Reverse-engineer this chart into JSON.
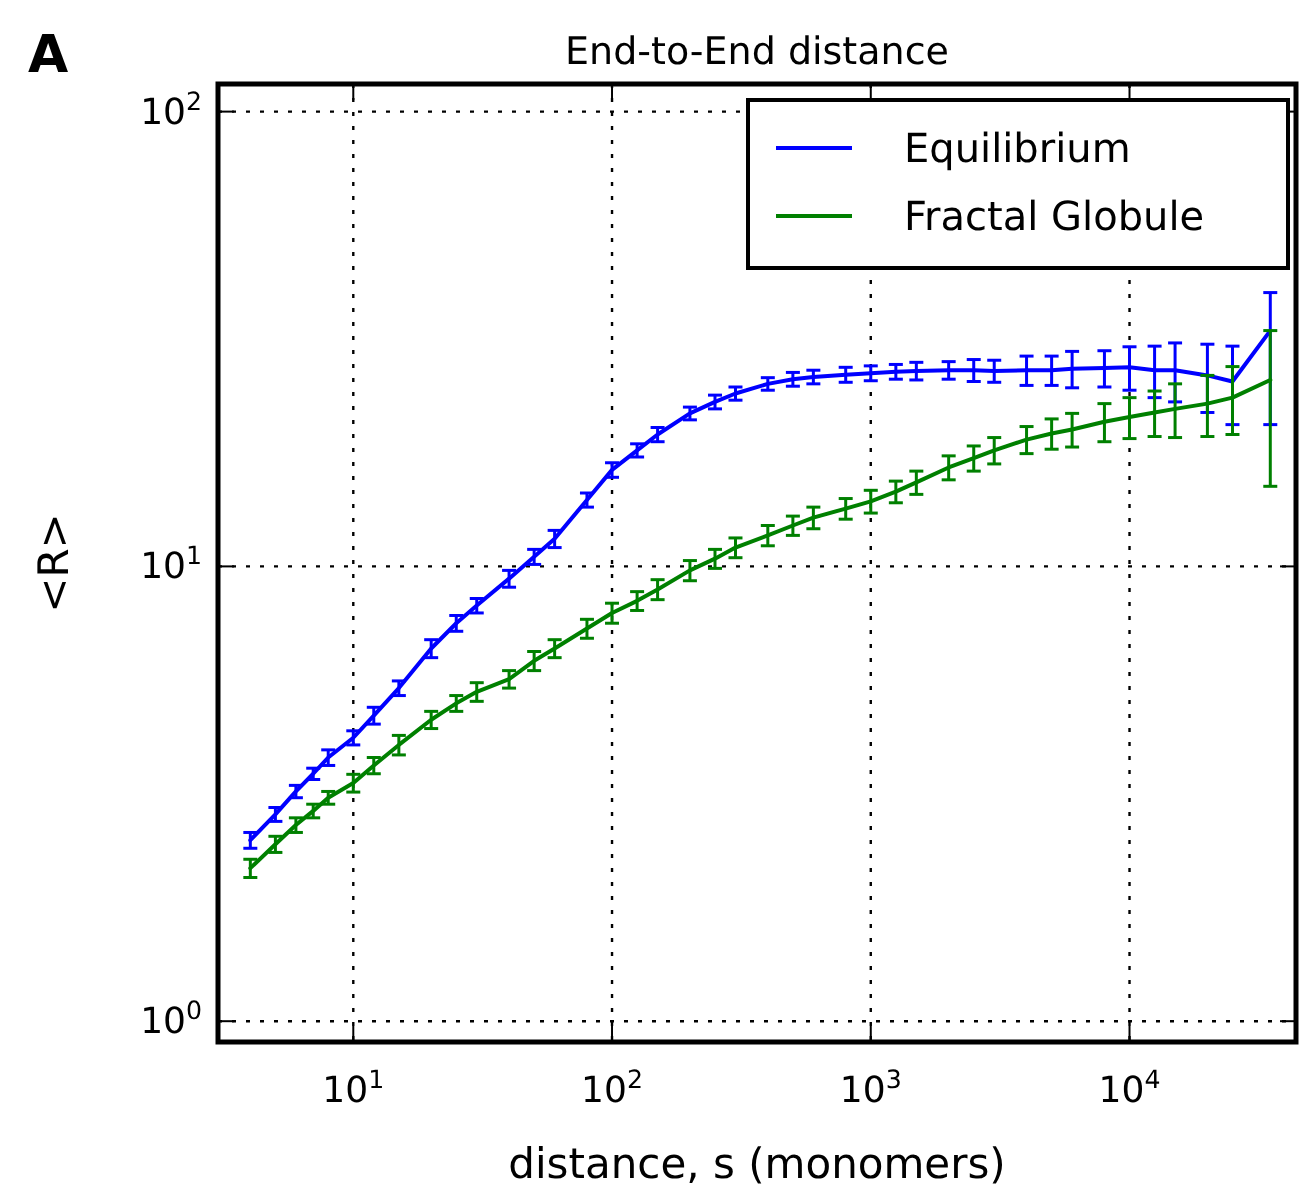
{
  "chart_data": {
    "type": "line",
    "title": "End-to-End distance",
    "xlabel": "distance, s (monomers)",
    "ylabel": "<R>",
    "annotations": [
      "A"
    ],
    "log": "xy",
    "grid": true,
    "legend": "top right",
    "line_style": "solid",
    "xlim": [
      3,
      44000
    ],
    "ylim": [
      0.9,
      115
    ],
    "xticks": [
      {
        "value": 10,
        "label": "10$^{1}$"
      },
      {
        "value": 100,
        "label": "10$^{2}$"
      },
      {
        "value": 1000,
        "label": "10$^{3}$"
      },
      {
        "value": 10000,
        "label": "10$^{4}$"
      }
    ],
    "yticks": [
      {
        "value": 1,
        "label": "10$^{0}$"
      },
      {
        "value": 10,
        "label": "10$^{1}$"
      },
      {
        "value": 100,
        "label": "10$^{2}$"
      }
    ],
    "x": [
      4,
      5,
      6,
      7,
      8,
      10,
      12,
      15,
      20,
      25,
      30,
      40,
      50,
      60,
      80,
      100,
      125,
      150,
      200,
      250,
      300,
      400,
      500,
      600,
      800,
      1000,
      1250,
      1500,
      2000,
      2500,
      3000,
      4000,
      5000,
      6000,
      8000,
      10000,
      12500,
      15000,
      20000,
      25000,
      35000
    ],
    "series": [
      {
        "name": "Equilibrium",
        "color": "#0000ff",
        "values": [
          2.5,
          2.85,
          3.2,
          3.5,
          3.8,
          4.2,
          4.7,
          5.4,
          6.6,
          7.5,
          8.2,
          9.4,
          10.5,
          11.5,
          14,
          16.3,
          18,
          19.5,
          21.7,
          23,
          24,
          25.2,
          25.8,
          26.1,
          26.4,
          26.6,
          26.8,
          26.9,
          27,
          27,
          26.9,
          27,
          27,
          27.2,
          27.3,
          27.4,
          27,
          27,
          26.3,
          25.5,
          33
        ],
        "errors": [
          0.1,
          0.1,
          0.1,
          0.1,
          0.15,
          0.15,
          0.2,
          0.2,
          0.3,
          0.3,
          0.3,
          0.4,
          0.4,
          0.5,
          0.5,
          0.6,
          0.6,
          0.7,
          0.7,
          0.8,
          0.8,
          0.8,
          0.9,
          0.9,
          1,
          1,
          1,
          1.2,
          1.2,
          1.5,
          1.5,
          2,
          2,
          2.5,
          2.5,
          3,
          3.5,
          4,
          4.5,
          5,
          [
            20.5,
            40
          ]
        ]
      },
      {
        "name": "Fractal Globule",
        "color": "#008000",
        "values": [
          2.17,
          2.45,
          2.7,
          2.9,
          3.1,
          3.34,
          3.65,
          4.05,
          4.6,
          5,
          5.3,
          5.65,
          6.2,
          6.6,
          7.3,
          7.9,
          8.4,
          8.9,
          9.8,
          10.4,
          11,
          11.7,
          12.3,
          12.8,
          13.4,
          13.9,
          14.6,
          15.3,
          16.5,
          17.3,
          18,
          19,
          19.6,
          20,
          20.8,
          21.3,
          21.8,
          22.2,
          22.8,
          23.5,
          25.7
        ],
        "errors": [
          0.1,
          0.1,
          0.1,
          0.1,
          0.1,
          0.15,
          0.15,
          0.2,
          0.2,
          0.2,
          0.25,
          0.25,
          0.3,
          0.3,
          0.35,
          0.4,
          0.4,
          0.45,
          0.5,
          0.5,
          0.55,
          0.6,
          0.6,
          0.7,
          0.7,
          0.8,
          0.8,
          0.9,
          1,
          1.1,
          1.2,
          1.3,
          1.5,
          1.7,
          2,
          2.2,
          2.5,
          3,
          3.5,
          4,
          [
            15,
            33
          ]
        ]
      }
    ]
  }
}
